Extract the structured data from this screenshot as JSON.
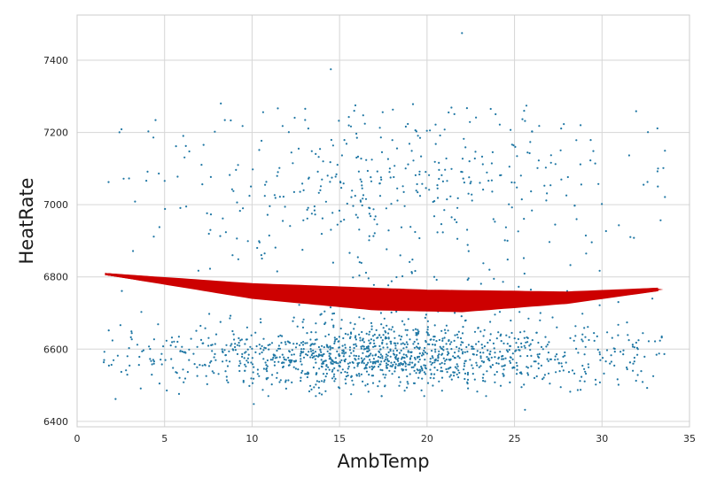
{
  "chart_data": {
    "type": "scatter",
    "xlabel": "AmbTemp",
    "ylabel": "HeatRate",
    "xlim": [
      0,
      35
    ],
    "ylim": [
      6385,
      7525
    ],
    "xticks": [
      0,
      5,
      10,
      15,
      20,
      25,
      30,
      35
    ],
    "yticks": [
      6400,
      6600,
      6800,
      7000,
      7200,
      7400
    ],
    "grid": true,
    "colors": {
      "points": "#1f77a4",
      "fit": "#cc0000",
      "grid": "#d6d6d6",
      "background": "#ffffff"
    },
    "scatter": {
      "n_points": 1800,
      "x_range": [
        1.5,
        33.6
      ],
      "lower_cluster": {
        "center": 6580,
        "spread": 45,
        "share": 0.72
      },
      "upper_band": {
        "range": [
          6640,
          7280
        ]
      },
      "notable_points": [
        [
          22,
          7475
        ],
        [
          14.5,
          7375
        ],
        [
          2.2,
          6462
        ],
        [
          25.6,
          6432
        ],
        [
          10.1,
          6448
        ]
      ]
    },
    "fit_curve": {
      "description_points_upper": [
        [
          1.6,
          6808
        ],
        [
          10,
          6780
        ],
        [
          20,
          6762
        ],
        [
          28,
          6757
        ],
        [
          33.5,
          6768
        ]
      ],
      "description_points_lower": [
        [
          1.6,
          6808
        ],
        [
          10,
          6742
        ],
        [
          17,
          6710
        ],
        [
          22,
          6705
        ],
        [
          28,
          6728
        ],
        [
          33.5,
          6765
        ]
      ]
    }
  }
}
